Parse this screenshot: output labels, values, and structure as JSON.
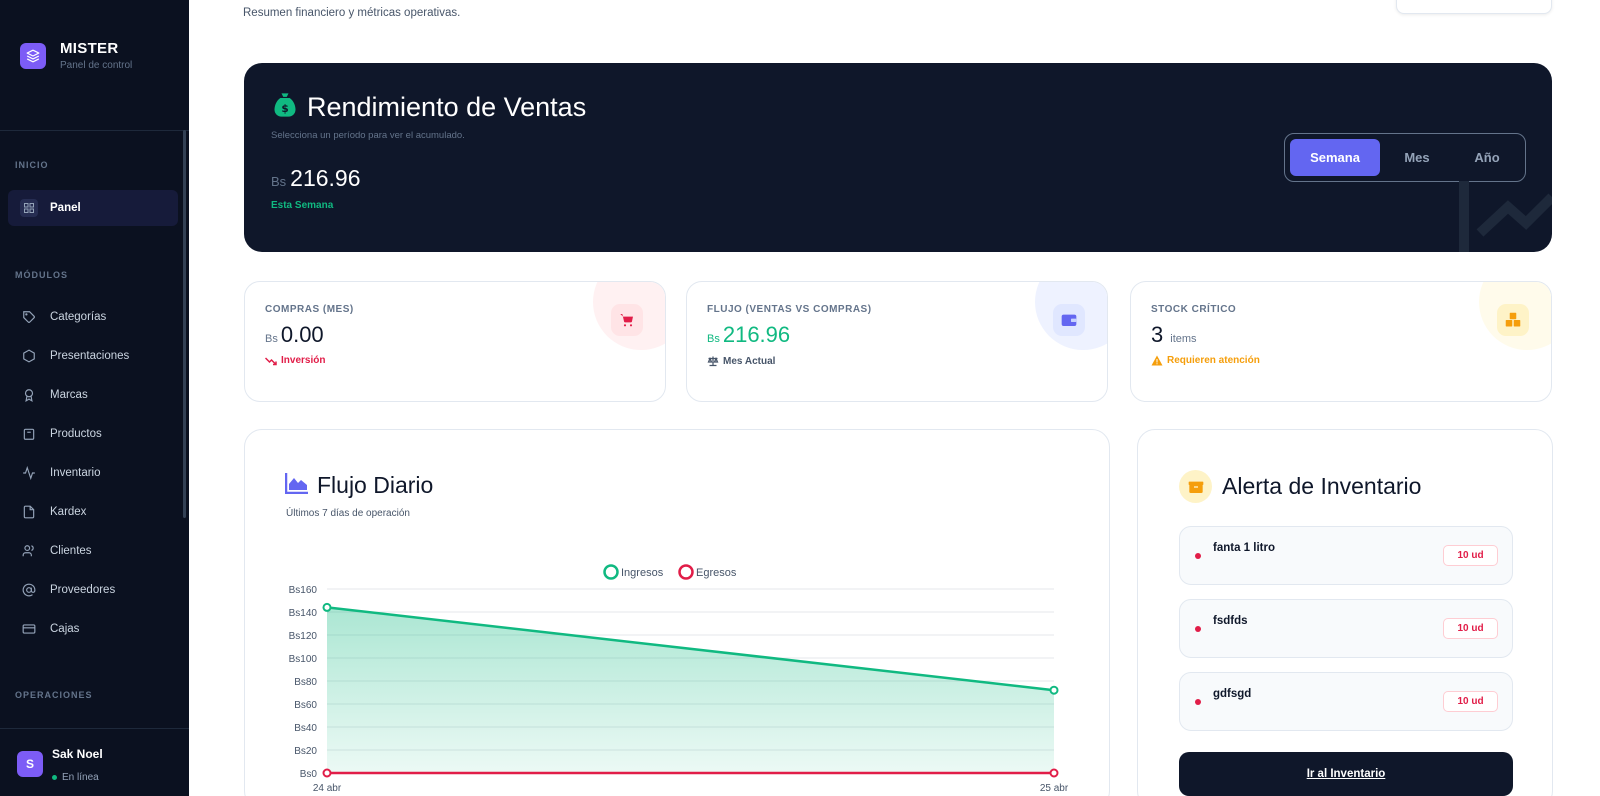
{
  "app": {
    "brand": "MISTER",
    "brand_sub": "Panel de control"
  },
  "sidebar": {
    "sections": {
      "inicio": "INICIO",
      "modulos": "MÓDULOS",
      "operaciones": "OPERACIONES"
    },
    "items": [
      {
        "label": "Panel",
        "icon": "grid-icon",
        "active": true
      },
      {
        "label": "Categorías",
        "icon": "tag-icon"
      },
      {
        "label": "Presentaciones",
        "icon": "hexagon-icon"
      },
      {
        "label": "Marcas",
        "icon": "award-icon"
      },
      {
        "label": "Productos",
        "icon": "package-icon"
      },
      {
        "label": "Inventario",
        "icon": "activity-icon"
      },
      {
        "label": "Kardex",
        "icon": "file-icon"
      },
      {
        "label": "Clientes",
        "icon": "users-icon"
      },
      {
        "label": "Proveedores",
        "icon": "at-icon"
      },
      {
        "label": "Cajas",
        "icon": "credit-card-icon"
      }
    ],
    "user": {
      "initial": "S",
      "name": "Sak Noel",
      "status": "En línea"
    }
  },
  "header": {
    "subtitle": "Resumen financiero y métricas operativas."
  },
  "hero": {
    "title": "Rendimiento de Ventas",
    "subtitle": "Selecciona un período para ver el acumulado.",
    "currency": "Bs",
    "amount": "216.96",
    "period_label": "Esta Semana",
    "tabs": [
      "Semana",
      "Mes",
      "Año"
    ],
    "selected_tab": "Semana"
  },
  "cards": [
    {
      "label": "COMPRAS (MES)",
      "currency": "Bs",
      "value": "0.00",
      "footer": "Inversión",
      "accent": "#e11d48",
      "icon": "cart-icon"
    },
    {
      "label": "FLUJO (VENTAS VS COMPRAS)",
      "currency": "Bs",
      "value": "216.96",
      "footer": "Mes Actual",
      "accent": "#10b981",
      "icon": "wallet-icon"
    },
    {
      "label": "STOCK CRÍTICO",
      "value": "3",
      "unit": "items",
      "footer": "Requieren atención",
      "accent": "#f59e0b",
      "icon": "boxes-icon"
    }
  ],
  "flujo": {
    "title": "Flujo Diario",
    "subtitle": "Últimos 7 días de operación"
  },
  "chart_data": {
    "type": "area",
    "x": [
      "24 abr",
      "25 abr"
    ],
    "series": [
      {
        "name": "Ingresos",
        "values": [
          144,
          72
        ],
        "color": "#10b981"
      },
      {
        "name": "Egresos",
        "values": [
          0,
          0
        ],
        "color": "#e11d48"
      }
    ],
    "y_ticks": [
      "Bs0",
      "Bs20",
      "Bs40",
      "Bs60",
      "Bs80",
      "Bs100",
      "Bs120",
      "Bs140",
      "Bs160"
    ],
    "ylim": [
      0,
      160
    ],
    "grid": true,
    "legend": "top-center"
  },
  "alerts": {
    "title": "Alerta de Inventario",
    "items": [
      {
        "name": "fanta 1 litro",
        "badge": "10 ud"
      },
      {
        "name": "fsdfds",
        "badge": "10 ud"
      },
      {
        "name": "gdfsgd",
        "badge": "10 ud"
      }
    ],
    "button": "Ir al Inventario"
  }
}
